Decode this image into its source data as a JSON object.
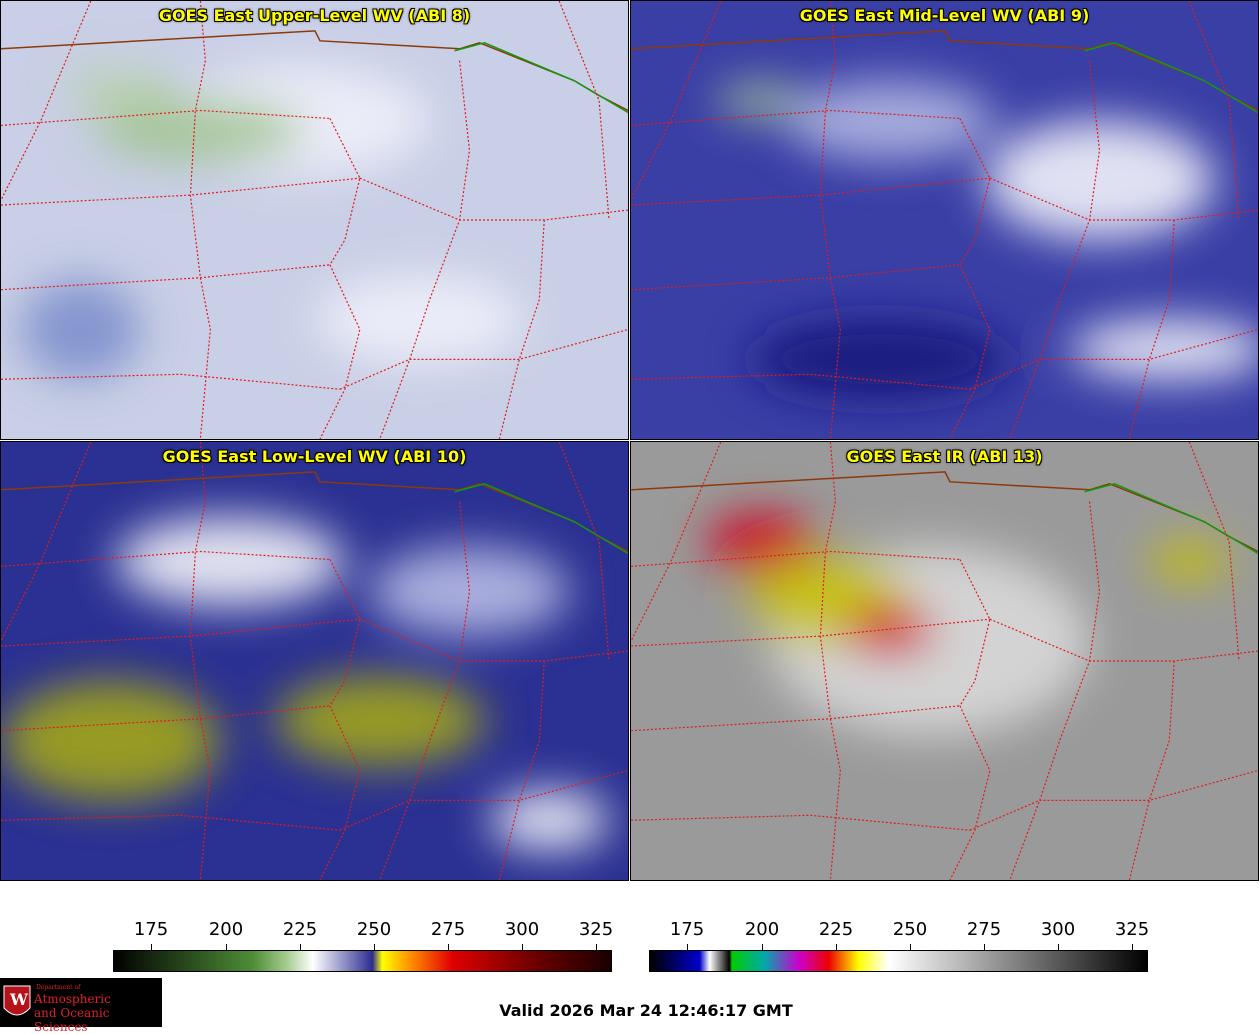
{
  "panels": [
    {
      "title": "GOES East Upper-Level WV (ABI 8)",
      "base": "#c9cfe6",
      "blobs": [
        "#eef0fa",
        "#9fc38e",
        "#b7d1a7",
        "#7d8fcc"
      ]
    },
    {
      "title": "GOES East Mid-Level WV (ABI 9)",
      "base": "#3a3fa6",
      "blobs": [
        "#f2f3fb",
        "#b3b8e2",
        "#a7c79a",
        "#1a1a7a"
      ]
    },
    {
      "title": "GOES East Low-Level WV (ABI 10)",
      "base": "#2b3192",
      "blobs": [
        "#f4f5fb",
        "#b8bde6",
        "#a3a618",
        "#8fbb86"
      ]
    },
    {
      "title": "GOES East IR (ABI 13)",
      "base": "#9a9a9a",
      "blobs": [
        "#d9d9d9",
        "#c8c200",
        "#d10020",
        "#ededed"
      ]
    }
  ],
  "colorbars": [
    {
      "name": "wv-colorbar",
      "ticks": [
        "175",
        "200",
        "225",
        "250",
        "275",
        "300",
        "325"
      ],
      "stops": [
        [
          "0",
          "#000000"
        ],
        [
          "0.28",
          "#4e8d36"
        ],
        [
          "0.35",
          "#a9cf94"
        ],
        [
          "0.4",
          "#ffffff"
        ],
        [
          "0.52",
          "#2d2d92"
        ],
        [
          "0.54",
          "#ffff00"
        ],
        [
          "0.6",
          "#ff8800"
        ],
        [
          "0.68",
          "#e00000"
        ],
        [
          "0.85",
          "#6a0000"
        ],
        [
          "1",
          "#1a0000"
        ]
      ]
    },
    {
      "name": "ir-colorbar",
      "ticks": [
        "175",
        "200",
        "225",
        "250",
        "275",
        "300",
        "325"
      ],
      "stops": [
        [
          "0",
          "#000000"
        ],
        [
          "0.1",
          "#0000cc"
        ],
        [
          "0.12",
          "#ffffff"
        ],
        [
          "0.16",
          "#000000"
        ],
        [
          "0.165",
          "#00cc00"
        ],
        [
          "0.23",
          "#00aaaa"
        ],
        [
          "0.3",
          "#cc00cc"
        ],
        [
          "0.36",
          "#ee0000"
        ],
        [
          "0.42",
          "#ffff00"
        ],
        [
          "0.48",
          "#ffffff"
        ],
        [
          "1",
          "#000000"
        ]
      ]
    }
  ],
  "footer": {
    "valid": "Valid 2026 Mar 24 12:46:17 GMT"
  },
  "logo": {
    "line1": "Department of",
    "line2": "Atmospheric",
    "line3": "and Oceanic Sciences",
    "badge": "W"
  }
}
